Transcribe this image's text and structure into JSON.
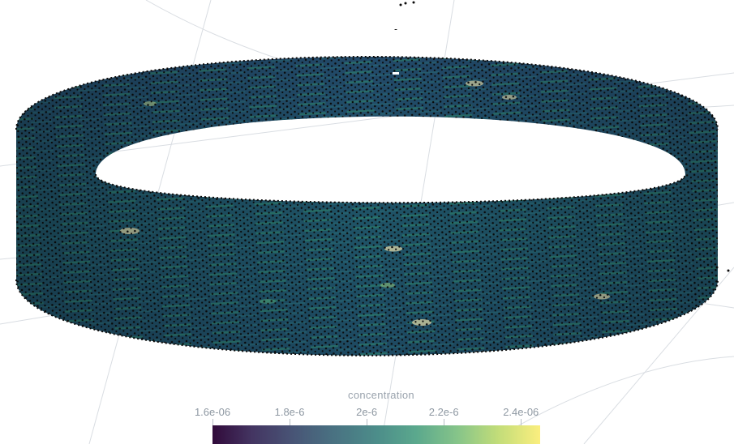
{
  "scene": {
    "surface_colors": {
      "dark": "#1d3b5e",
      "mid": "#1e5a6a",
      "light": "#2f7f70",
      "hot": "#c9c8a0",
      "dots": "#0a0a0a"
    }
  },
  "colorbar": {
    "title": "concentration",
    "ticks": [
      {
        "label": "1.6e-06",
        "value": 1.6e-06
      },
      {
        "label": "1.8e-6",
        "value": 1.8e-06
      },
      {
        "label": "2e-6",
        "value": 2e-06
      },
      {
        "label": "2.2e-6",
        "value": 2.2e-06
      },
      {
        "label": "2.4e-06",
        "value": 2.4e-06
      }
    ],
    "range": [
      1.6e-06,
      2.45e-06
    ],
    "colormap": "viridis"
  }
}
